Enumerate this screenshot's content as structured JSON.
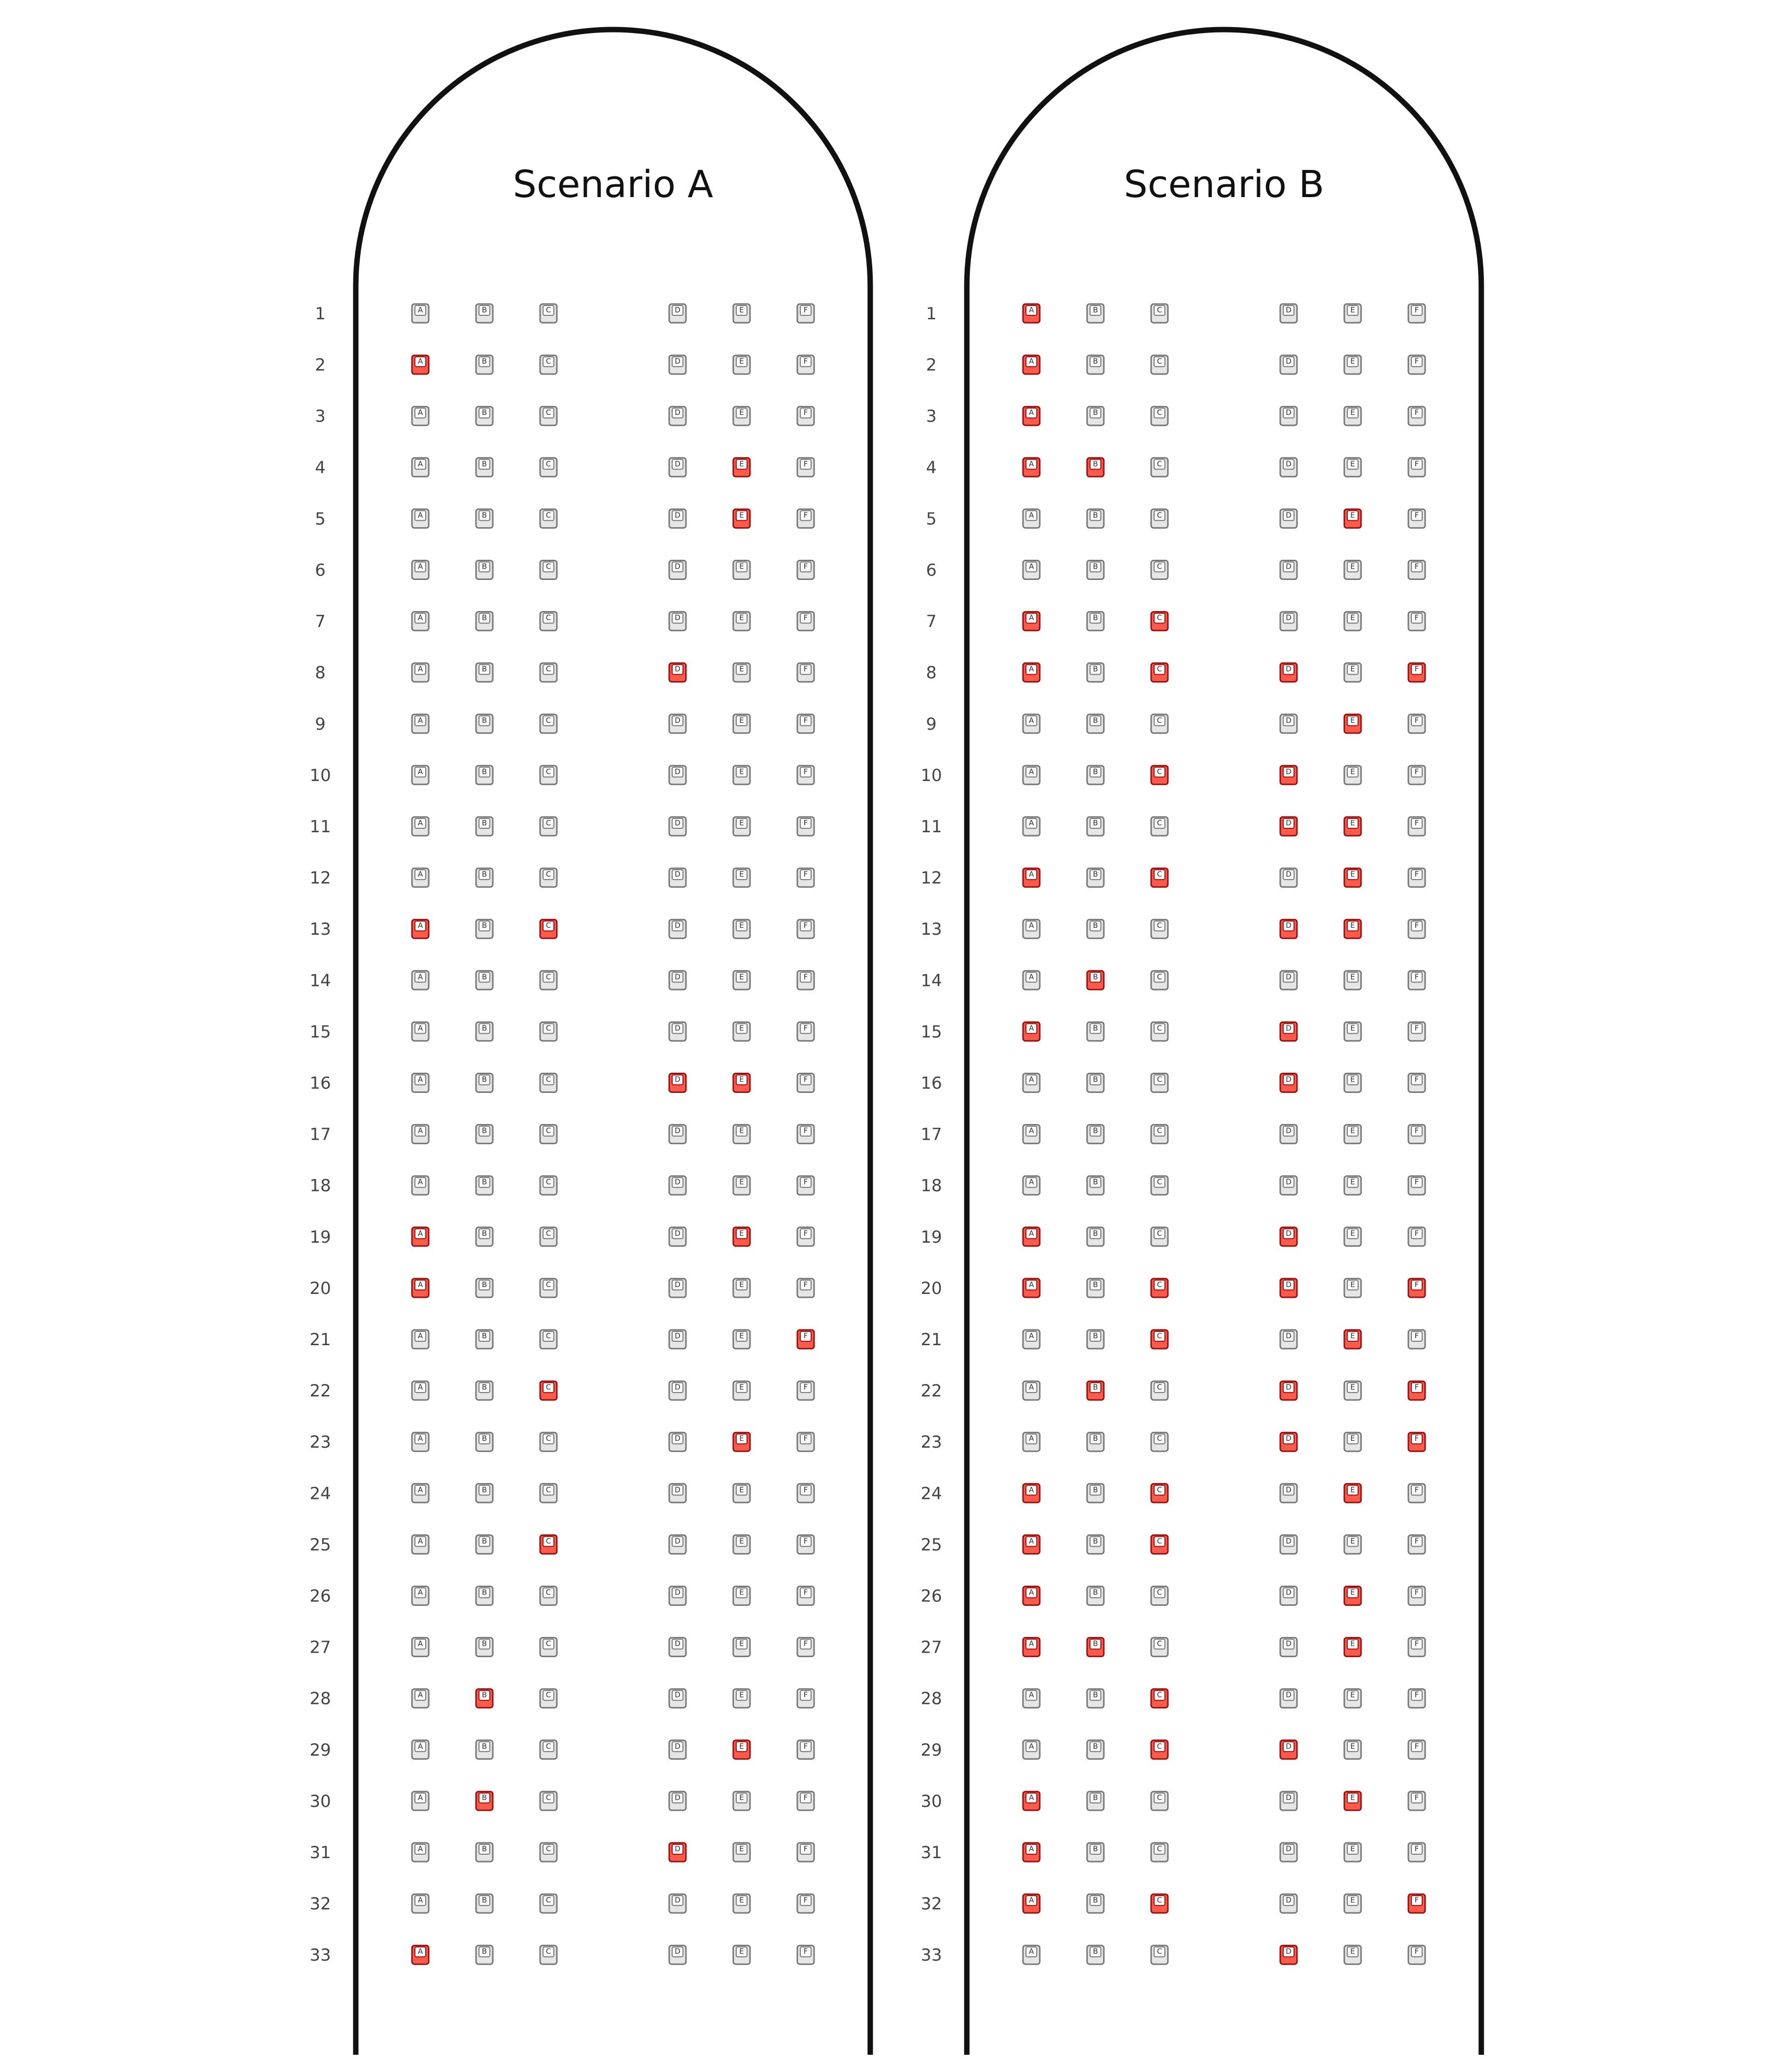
{
  "colors": {
    "outline": "#111111",
    "seat_free_fill": "#e6e6e6",
    "seat_free_stroke": "#777777",
    "seat_occupied_fill": "#ff5a4a",
    "seat_occupied_stroke": "#9a1010"
  },
  "seat_letters": [
    "A",
    "B",
    "C",
    "D",
    "E",
    "F"
  ],
  "rows": [
    "1",
    "2",
    "3",
    "4",
    "5",
    "6",
    "7",
    "8",
    "9",
    "10",
    "11",
    "12",
    "13",
    "14",
    "15",
    "16",
    "17",
    "18",
    "19",
    "20",
    "21",
    "22",
    "23",
    "24",
    "25",
    "26",
    "27",
    "28",
    "29",
    "30",
    "31",
    "32",
    "33"
  ],
  "scenarios": [
    {
      "title": "Scenario A",
      "occupied": {
        "2": [
          "A"
        ],
        "4": [
          "E"
        ],
        "5": [
          "E"
        ],
        "8": [
          "D"
        ],
        "13": [
          "A",
          "C"
        ],
        "16": [
          "D",
          "E"
        ],
        "19": [
          "A",
          "E"
        ],
        "20": [
          "A"
        ],
        "21": [
          "F"
        ],
        "22": [
          "C"
        ],
        "23": [
          "E"
        ],
        "25": [
          "C"
        ],
        "28": [
          "B"
        ],
        "29": [
          "E"
        ],
        "30": [
          "B"
        ],
        "31": [
          "D"
        ],
        "33": [
          "A"
        ]
      }
    },
    {
      "title": "Scenario B",
      "occupied": {
        "1": [
          "A"
        ],
        "2": [
          "A"
        ],
        "3": [
          "A"
        ],
        "4": [
          "A",
          "B"
        ],
        "5": [
          "E"
        ],
        "7": [
          "A",
          "C"
        ],
        "8": [
          "A",
          "C",
          "D",
          "F"
        ],
        "9": [
          "E"
        ],
        "10": [
          "C",
          "D"
        ],
        "11": [
          "D",
          "E"
        ],
        "12": [
          "A",
          "C",
          "E"
        ],
        "13": [
          "D",
          "E"
        ],
        "14": [
          "B"
        ],
        "15": [
          "A",
          "D"
        ],
        "16": [
          "D"
        ],
        "19": [
          "A",
          "D"
        ],
        "20": [
          "A",
          "C",
          "D",
          "F"
        ],
        "21": [
          "C",
          "E"
        ],
        "22": [
          "B",
          "D",
          "F"
        ],
        "23": [
          "D",
          "F"
        ],
        "24": [
          "A",
          "C",
          "E"
        ],
        "25": [
          "A",
          "C"
        ],
        "26": [
          "A",
          "E"
        ],
        "27": [
          "A",
          "B",
          "E"
        ],
        "28": [
          "C"
        ],
        "29": [
          "C",
          "D"
        ],
        "30": [
          "A",
          "E"
        ],
        "31": [
          "A"
        ],
        "32": [
          "A",
          "C",
          "F"
        ],
        "33": [
          "D"
        ]
      }
    }
  ]
}
